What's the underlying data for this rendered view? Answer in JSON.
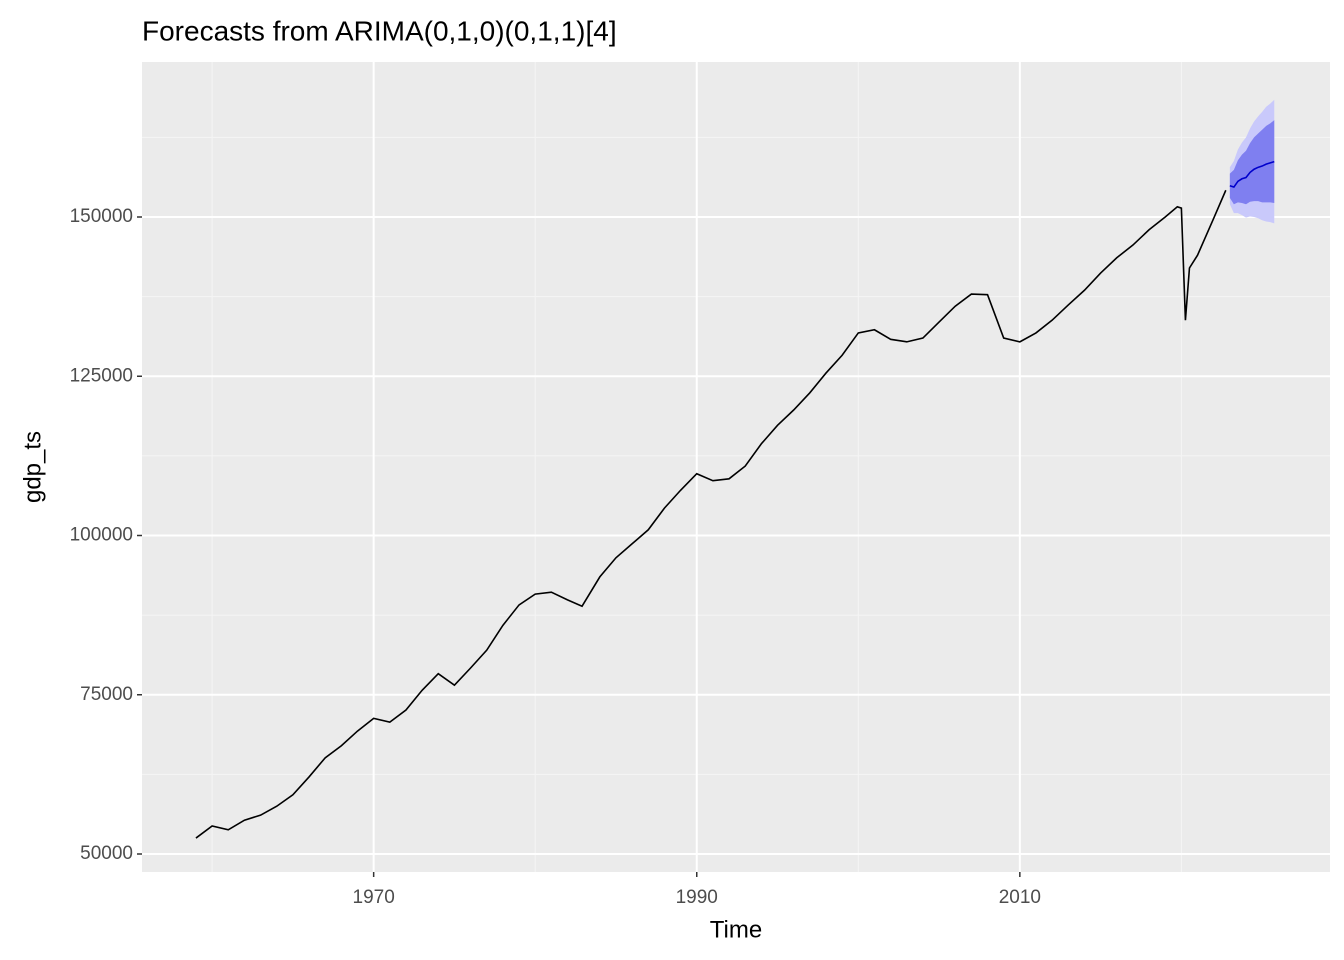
{
  "chart_data": {
    "type": "forecast",
    "title": "Forecasts from ARIMA(0,1,0)(0,1,1)[4]",
    "xlabel": "Time",
    "ylabel": "gdp_ts",
    "xlim": [
      1955.66,
      2029.2
    ],
    "ylim": [
      47174,
      174333
    ],
    "xticks": [
      1970,
      1990,
      2010
    ],
    "yticks": [
      50000,
      75000,
      100000,
      125000,
      150000
    ],
    "xminor": [
      1960,
      1980,
      2000,
      2020
    ],
    "yminor": [
      62500,
      87500,
      112500,
      137500,
      162500
    ],
    "grid": true,
    "panel_color": "#ebebeb",
    "history": {
      "color": "#000000",
      "x": [
        1959,
        1960,
        1961,
        1962,
        1963,
        1964,
        1965,
        1966,
        1967,
        1968,
        1969,
        1970,
        1971,
        1972,
        1973,
        1974,
        1975,
        1976,
        1977,
        1978,
        1979,
        1980,
        1981,
        1982,
        1982.9,
        1984,
        1985,
        1986,
        1987,
        1988,
        1989,
        1990,
        1991,
        1992,
        1993,
        1994,
        1995,
        1996,
        1997,
        1998,
        1999,
        2000,
        2001,
        2002,
        2003,
        2004,
        2005,
        2006,
        2007,
        2008,
        2009,
        2010,
        2011,
        2012,
        2013,
        2014,
        2015,
        2016,
        2017,
        2018,
        2019,
        2019.75,
        2020,
        2020.25,
        2020.5,
        2021,
        2022,
        2022.75
      ],
      "values": [
        52500,
        54400,
        53800,
        55300,
        56100,
        57500,
        59300,
        62100,
        65100,
        67000,
        69300,
        71300,
        70700,
        72600,
        75700,
        78300,
        76500,
        79200,
        82000,
        85900,
        89100,
        90800,
        91100,
        89900,
        88900,
        93500,
        96500,
        98700,
        100900,
        104300,
        107100,
        109700,
        108600,
        108900,
        110900,
        114400,
        117300,
        119700,
        122400,
        125500,
        128300,
        131800,
        132300,
        130800,
        130400,
        131000,
        133500,
        136000,
        137900,
        137800,
        131000,
        130400,
        131800,
        133800,
        136200,
        138500,
        141200,
        143600,
        145600,
        148000,
        150000,
        151600,
        151400,
        133800,
        142000,
        144000,
        149800,
        154200
      ]
    },
    "forecast": {
      "color": "#0000cc",
      "band80_color": "#7f7ff0",
      "band95_color": "#c9c9fb",
      "x": [
        2023,
        2023.25,
        2023.5,
        2023.75,
        2024,
        2024.25,
        2024.5,
        2024.75,
        2025,
        2025.25,
        2025.5,
        2025.75
      ],
      "mean": [
        154900,
        154700,
        155600,
        156000,
        156200,
        157000,
        157500,
        157800,
        158000,
        158300,
        158500,
        158700
      ],
      "lo80": [
        153000,
        152000,
        152300,
        152200,
        152000,
        152400,
        152500,
        152500,
        152300,
        152300,
        152300,
        152200
      ],
      "hi80": [
        156800,
        157400,
        158900,
        159800,
        160400,
        161600,
        162500,
        163100,
        163700,
        164300,
        164700,
        165200
      ],
      "lo95": [
        152000,
        150600,
        150600,
        150300,
        149900,
        150100,
        150000,
        149800,
        149500,
        149300,
        149200,
        149000
      ],
      "hi95": [
        157800,
        158800,
        160600,
        161700,
        162500,
        163900,
        165000,
        165800,
        166500,
        167300,
        167800,
        168400
      ]
    }
  }
}
